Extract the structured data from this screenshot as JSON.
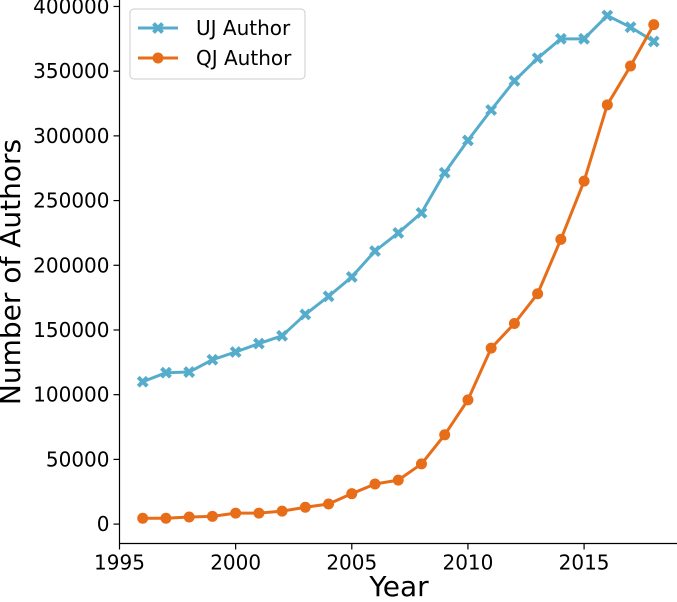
{
  "chart_data": {
    "type": "line",
    "xlabel": "Year",
    "ylabel": "Number of Authors",
    "xlim": [
      1995.0,
      2019.0
    ],
    "ylim": [
      -15000,
      405000
    ],
    "xticks": [
      1995,
      2000,
      2005,
      2010,
      2015
    ],
    "yticks": [
      0,
      50000,
      100000,
      150000,
      200000,
      250000,
      300000,
      350000,
      400000
    ],
    "grid": false,
    "legend_position": "top-left",
    "x": [
      1996,
      1997,
      1998,
      1999,
      2000,
      2001,
      2002,
      2003,
      2004,
      2005,
      2006,
      2007,
      2008,
      2009,
      2010,
      2011,
      2012,
      2013,
      2014,
      2015,
      2016,
      2017,
      2018
    ],
    "series": [
      {
        "name": "UJ Author",
        "color": "#56adcb",
        "marker": "x",
        "values": [
          110000,
          117000,
          117500,
          127000,
          133000,
          139500,
          145500,
          162000,
          176000,
          191000,
          211000,
          225000,
          240500,
          271500,
          296500,
          320000,
          342500,
          360000,
          375000,
          375000,
          393000,
          384000,
          373000
        ]
      },
      {
        "name": "QJ Author",
        "color": "#e86d19",
        "marker": "circle",
        "values": [
          4500,
          4500,
          5500,
          6000,
          8500,
          8500,
          10000,
          13000,
          15500,
          23500,
          31000,
          34000,
          46500,
          69000,
          96000,
          136000,
          155000,
          178000,
          220000,
          265000,
          324000,
          354000,
          386000
        ]
      }
    ]
  }
}
